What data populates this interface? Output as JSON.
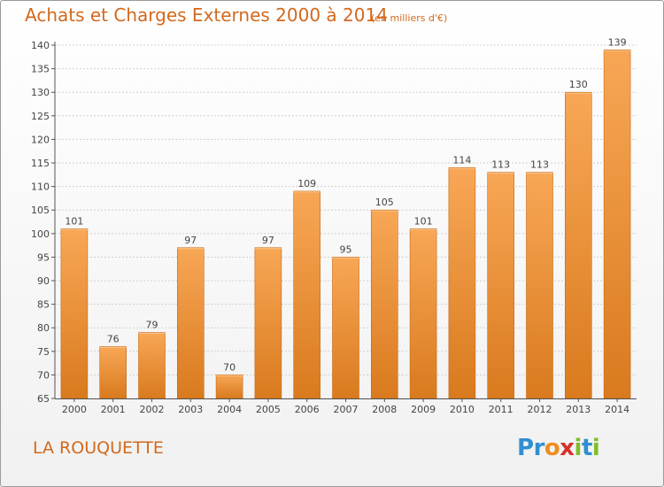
{
  "title": "Achats et Charges Externes 2000 à 2014",
  "unit": "(en milliers d'€)",
  "commune": "LA ROUQUETTE",
  "logo": {
    "text": "Proxiti",
    "letters": [
      {
        "ch": "P",
        "color": "#2f8fd0"
      },
      {
        "ch": "r",
        "color": "#2f8fd0"
      },
      {
        "ch": "o",
        "color": "#f08c1e"
      },
      {
        "ch": "x",
        "color": "#d9302a"
      },
      {
        "ch": "i",
        "color": "#7fbf2a"
      },
      {
        "ch": "t",
        "color": "#2f8fd0"
      },
      {
        "ch": "i",
        "color": "#7fbf2a"
      }
    ]
  },
  "colors": {
    "accent": "#d2691e",
    "bar_top": "#f8a756",
    "bar_bottom": "#d97a1e",
    "grid": "#d0d0d0"
  },
  "chart_data": {
    "type": "bar",
    "categories": [
      "2000",
      "2001",
      "2002",
      "2003",
      "2004",
      "2005",
      "2006",
      "2007",
      "2008",
      "2009",
      "2010",
      "2011",
      "2012",
      "2013",
      "2014"
    ],
    "values": [
      101,
      76,
      79,
      97,
      70,
      97,
      109,
      95,
      105,
      101,
      114,
      113,
      113,
      130,
      139
    ],
    "ylim": [
      65,
      140
    ],
    "yticks": [
      65,
      70,
      75,
      80,
      85,
      90,
      95,
      100,
      105,
      110,
      115,
      120,
      125,
      130,
      135,
      140
    ],
    "grid": true
  }
}
